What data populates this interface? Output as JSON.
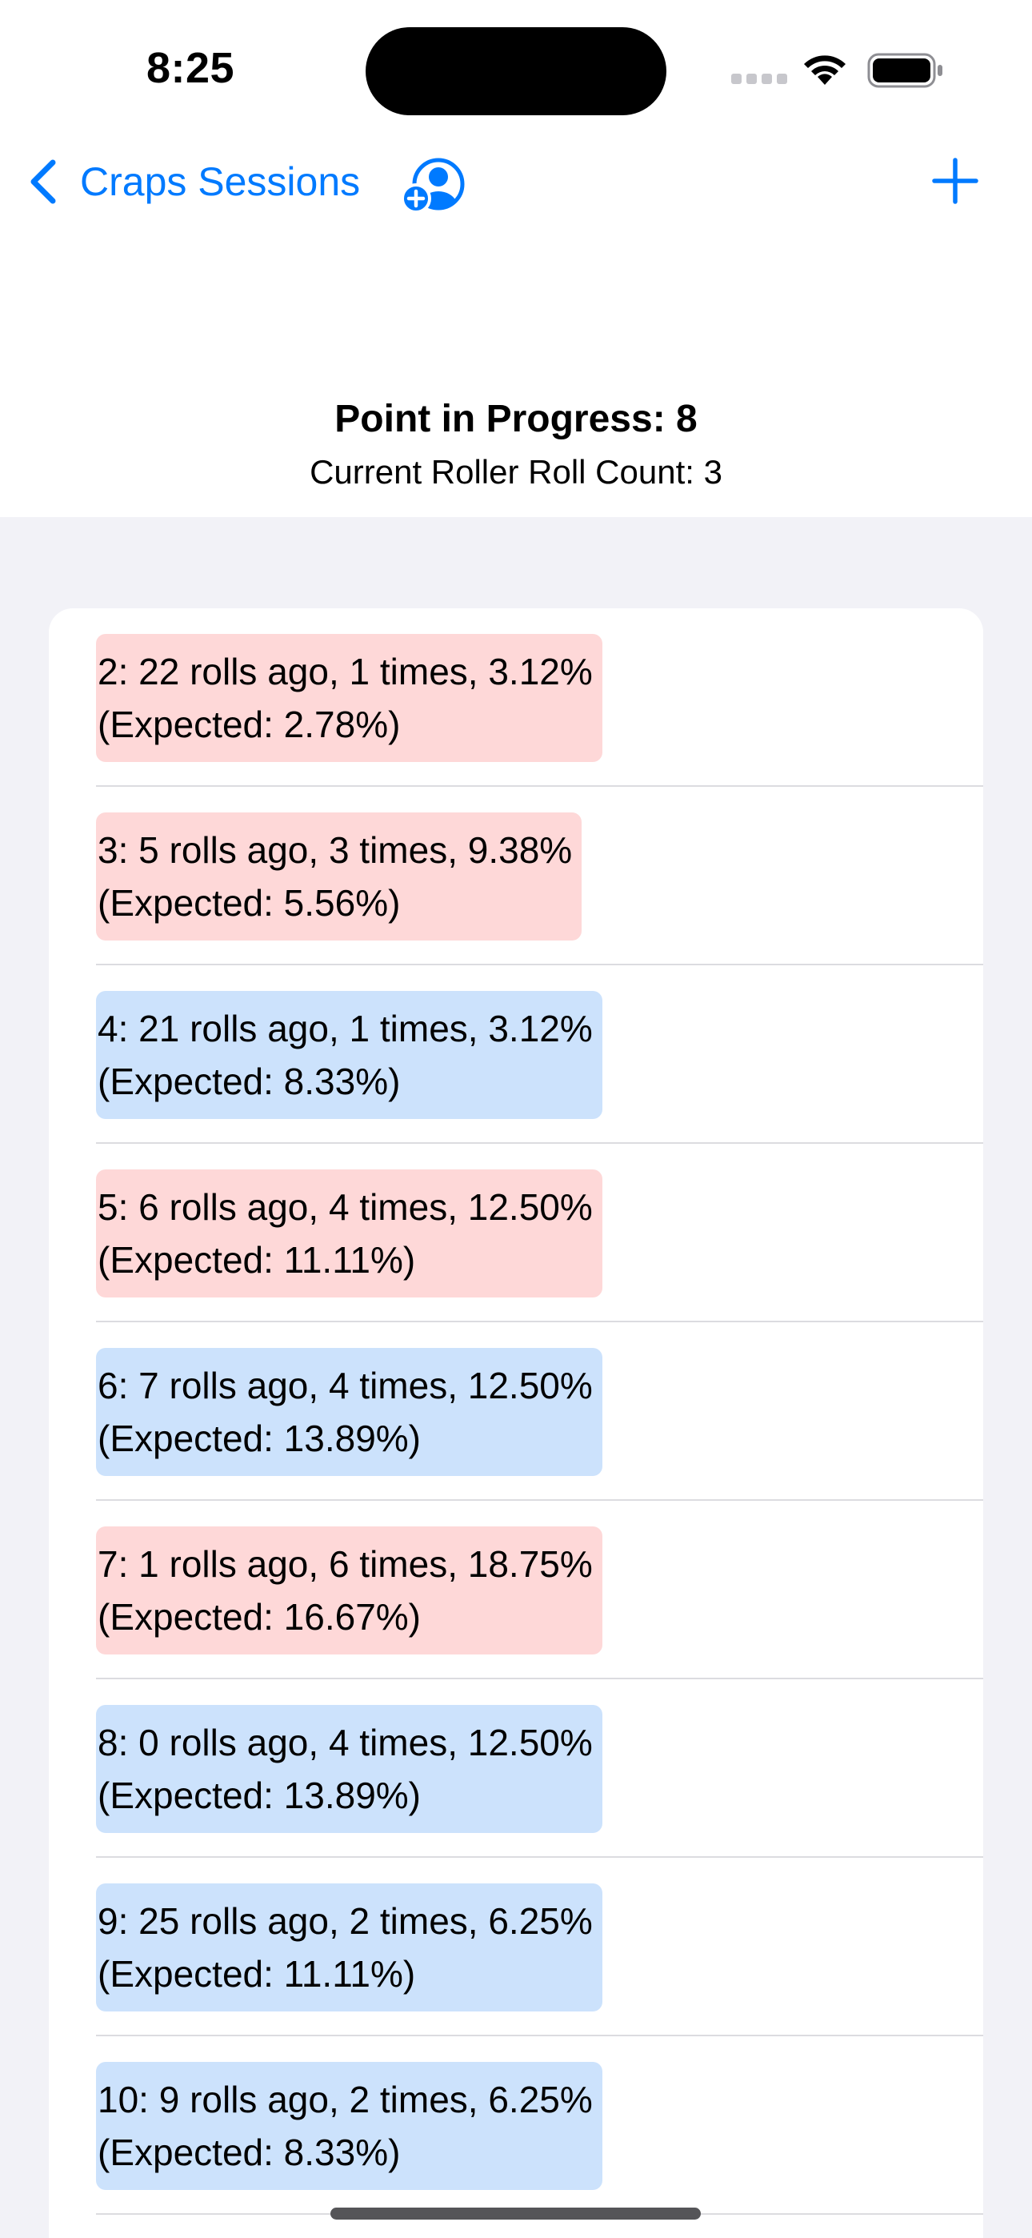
{
  "status_bar": {
    "time": "8:25",
    "signal_icon": "cellular-signal-icon",
    "wifi_icon": "wifi-icon",
    "battery_icon": "battery-icon"
  },
  "nav": {
    "back_label": "Craps Sessions",
    "back_icon": "chevron-left-icon",
    "person_icon": "add-person-icon",
    "add_icon": "plus-icon",
    "accent_color": "#007aff"
  },
  "header": {
    "point": "Point in Progress: 8",
    "roll_count": "Current Roller Roll Count: 3"
  },
  "colors": {
    "hot": "#fed8d8",
    "cold": "#cce2fc"
  },
  "rows": [
    {
      "line1": "2: 22 rolls ago, 1 times, 3.12%",
      "line2": "(Expected: 2.78%)",
      "status": "hot"
    },
    {
      "line1": "3: 5 rolls ago, 3 times, 9.38%",
      "line2": "(Expected: 5.56%)",
      "status": "hot"
    },
    {
      "line1": "4: 21 rolls ago, 1 times, 3.12%",
      "line2": "(Expected: 8.33%)",
      "status": "cold"
    },
    {
      "line1": "5: 6 rolls ago, 4 times, 12.50%",
      "line2": "(Expected: 11.11%)",
      "status": "hot"
    },
    {
      "line1": "6: 7 rolls ago, 4 times, 12.50%",
      "line2": "(Expected: 13.89%)",
      "status": "cold"
    },
    {
      "line1": "7: 1 rolls ago, 6 times, 18.75%",
      "line2": "(Expected: 16.67%)",
      "status": "hot"
    },
    {
      "line1": "8: 0 rolls ago, 4 times, 12.50%",
      "line2": "(Expected: 13.89%)",
      "status": "cold"
    },
    {
      "line1": "9: 25 rolls ago, 2 times, 6.25%",
      "line2": "(Expected: 11.11%)",
      "status": "cold"
    },
    {
      "line1": "10: 9 rolls ago, 2 times, 6.25%",
      "line2": "(Expected: 8.33%)",
      "status": "cold"
    }
  ]
}
